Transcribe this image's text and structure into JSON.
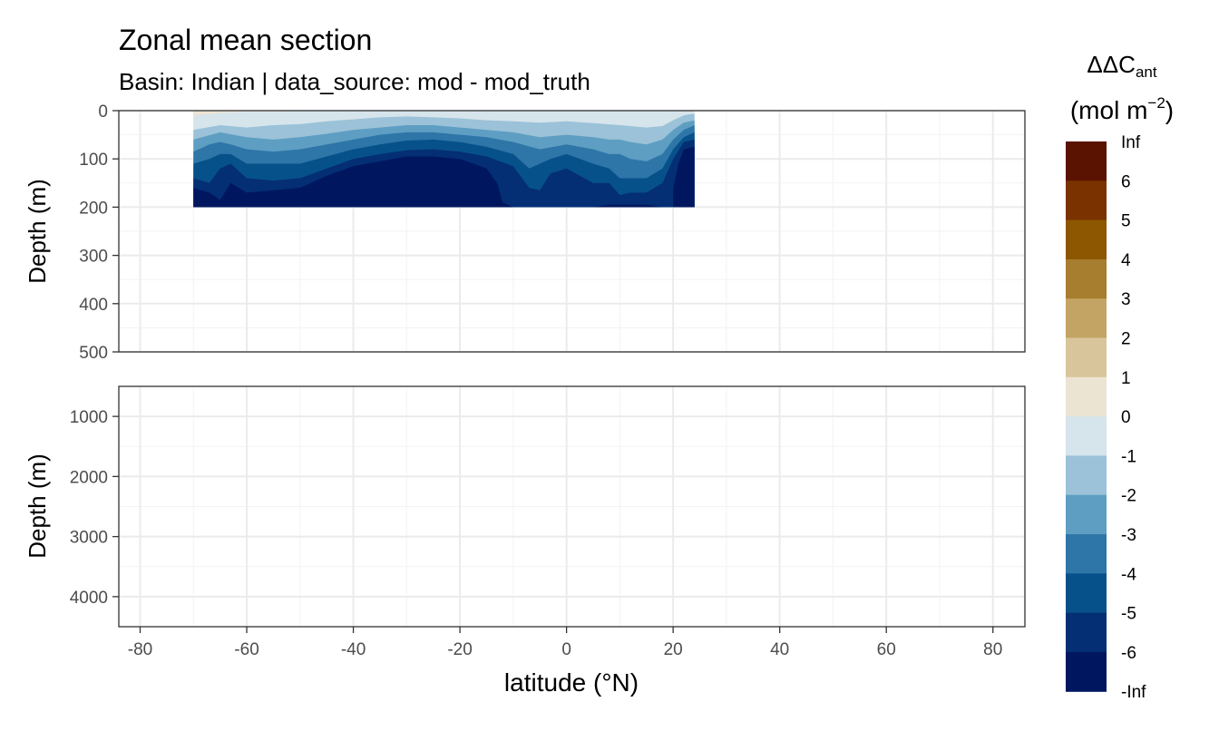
{
  "chart_data": {
    "type": "heatmap",
    "title": "Zonal mean section",
    "subtitle": "Basin: Indian | data_source: mod - mod_truth",
    "xlabel": "latitude (°N)",
    "ylabel": "Depth (m)",
    "x_ticks": [
      "-80",
      "-60",
      "-40",
      "-20",
      "0",
      "20",
      "40",
      "60",
      "80"
    ],
    "xlim": [
      -84,
      86
    ],
    "panels": [
      {
        "name": "upper",
        "ylim": [
          0,
          500
        ],
        "y_ticks": [
          "0",
          "100",
          "200",
          "300",
          "400",
          "500"
        ],
        "y_values": [
          0,
          100,
          200,
          300,
          400,
          500
        ]
      },
      {
        "name": "lower",
        "ylim": [
          500,
          4500
        ],
        "y_ticks": [
          "1000",
          "2000",
          "3000",
          "4000"
        ],
        "y_values": [
          1000,
          2000,
          3000,
          4000
        ]
      }
    ],
    "data_extent": {
      "lat": [
        -70,
        24
      ],
      "depth": [
        0,
        200
      ]
    },
    "contours": [
      {
        "level": "-Inf..-6",
        "lat": [
          -70,
          -67,
          -65,
          -63,
          -60,
          -55,
          -50,
          -45,
          -40,
          -35,
          -30,
          -25,
          -20,
          -15,
          -13,
          -12,
          -10,
          -5,
          0,
          5,
          8,
          10,
          15,
          18,
          20,
          20,
          21,
          22,
          24
        ],
        "depth": [
          160,
          170,
          185,
          150,
          170,
          165,
          160,
          135,
          115,
          105,
          95,
          95,
          100,
          120,
          150,
          190,
          200,
          200,
          200,
          200,
          195,
          195,
          195,
          200,
          200,
          160,
          110,
          80,
          75
        ]
      },
      {
        "level": "-6..-5",
        "lat": [
          -70,
          -67,
          -65,
          -63,
          -60,
          -55,
          -50,
          -45,
          -40,
          -35,
          -30,
          -25,
          -20,
          -15,
          -10,
          -7,
          -5,
          -3,
          0,
          5,
          8,
          10,
          12,
          15,
          18,
          20,
          22,
          24
        ],
        "depth": [
          140,
          150,
          120,
          110,
          140,
          145,
          140,
          120,
          100,
          90,
          82,
          80,
          85,
          95,
          115,
          160,
          165,
          130,
          120,
          150,
          150,
          175,
          170,
          170,
          150,
          100,
          65,
          60
        ]
      },
      {
        "level": "-5..-4",
        "lat": [
          -70,
          -67,
          -65,
          -63,
          -60,
          -55,
          -50,
          -45,
          -40,
          -35,
          -30,
          -25,
          -20,
          -15,
          -10,
          -7,
          -5,
          -3,
          0,
          5,
          8,
          10,
          12,
          15,
          18,
          20,
          22,
          24
        ],
        "depth": [
          110,
          100,
          90,
          90,
          110,
          110,
          110,
          95,
          80,
          70,
          62,
          60,
          65,
          75,
          90,
          120,
          110,
          100,
          90,
          110,
          120,
          140,
          140,
          140,
          120,
          80,
          55,
          45
        ]
      },
      {
        "level": "-4..-3",
        "lat": [
          -70,
          -67,
          -65,
          -63,
          -60,
          -55,
          -50,
          -45,
          -40,
          -35,
          -30,
          -25,
          -20,
          -15,
          -10,
          -5,
          0,
          5,
          8,
          10,
          12,
          15,
          18,
          20,
          22,
          24
        ],
        "depth": [
          85,
          70,
          65,
          70,
          80,
          85,
          80,
          70,
          60,
          50,
          45,
          45,
          50,
          55,
          65,
          80,
          70,
          80,
          90,
          90,
          100,
          105,
          90,
          60,
          40,
          30
        ]
      },
      {
        "level": "-3..-2",
        "lat": [
          -70,
          -65,
          -60,
          -55,
          -50,
          -45,
          -40,
          -35,
          -30,
          -25,
          -20,
          -15,
          -10,
          -5,
          0,
          5,
          8,
          10,
          12,
          15,
          18,
          20,
          22,
          24
        ],
        "depth": [
          60,
          45,
          55,
          60,
          55,
          48,
          40,
          35,
          30,
          30,
          35,
          40,
          45,
          55,
          50,
          55,
          60,
          60,
          65,
          70,
          60,
          40,
          25,
          20
        ]
      },
      {
        "level": "-2..-1",
        "lat": [
          -70,
          -65,
          -60,
          -55,
          -50,
          -45,
          -40,
          -35,
          -30,
          -25,
          -20,
          -15,
          -10,
          -5,
          0,
          5,
          10,
          15,
          18,
          20,
          22,
          24
        ],
        "depth": [
          40,
          30,
          35,
          30,
          28,
          22,
          18,
          14,
          12,
          14,
          16,
          20,
          22,
          25,
          22,
          26,
          30,
          35,
          32,
          20,
          10,
          6
        ]
      },
      {
        "level": "-1..0",
        "lat": [
          -70,
          -65,
          -62,
          -60,
          -55,
          -50,
          -45,
          -40,
          -35,
          -32,
          -28,
          -25,
          -20,
          -15,
          -10,
          -5,
          0,
          5,
          10,
          15,
          18,
          20,
          22,
          24
        ],
        "depth": [
          25,
          20,
          15,
          12,
          10,
          8,
          8,
          6,
          3,
          0,
          0,
          2,
          5,
          8,
          10,
          12,
          10,
          10,
          12,
          12,
          10,
          6,
          2,
          0
        ]
      },
      {
        "level": "0..1",
        "lat": [
          -70,
          -65,
          -62,
          -60,
          -55,
          -50,
          -45,
          -40,
          -35,
          -32
        ],
        "depth": [
          10,
          5,
          3,
          2,
          2,
          1,
          1,
          1,
          0,
          0
        ]
      }
    ],
    "legend": {
      "title": "ΔΔC",
      "title_subscript": "ant",
      "units": "(mol m",
      "units_superscript": "−2",
      "units_close": ")",
      "placement": "right",
      "labels": [
        "Inf",
        "6",
        "5",
        "4",
        "3",
        "2",
        "1",
        "0",
        "-1",
        "-2",
        "-3",
        "-4",
        "-5",
        "-6",
        "-Inf"
      ],
      "colors": [
        "#5a1300",
        "#7a3300",
        "#8d5600",
        "#a77d2f",
        "#c4a464",
        "#d9c59b",
        "#ece4d3",
        "#d6e4ec",
        "#9bc2d8",
        "#5e9ec2",
        "#2e75a8",
        "#07518a",
        "#042f74",
        "#001760"
      ]
    }
  }
}
